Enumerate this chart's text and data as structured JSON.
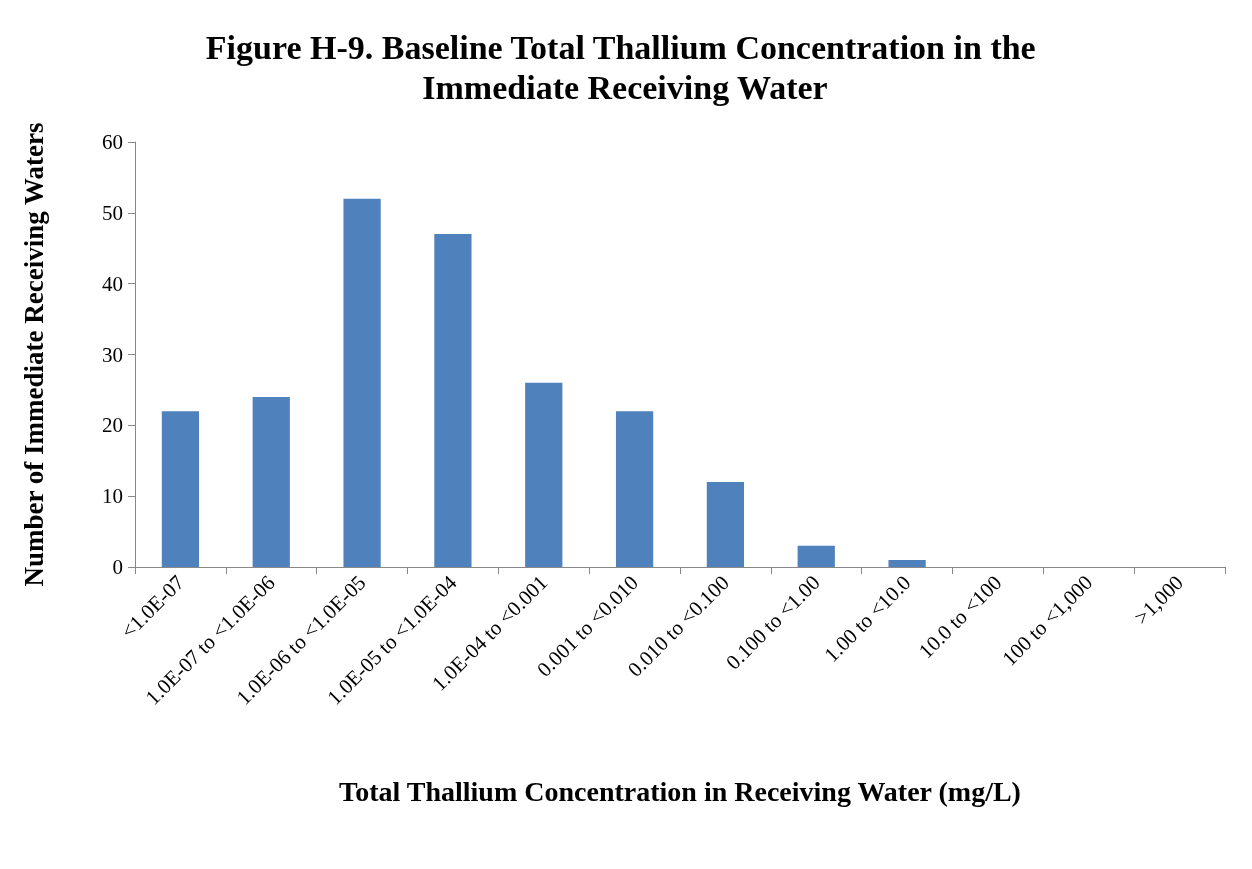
{
  "chart_data": {
    "type": "bar",
    "title": "Figure H-9. Baseline Total Thallium Concentration in the Immediate Receiving Water",
    "xlabel": "Total Thallium Concentration in Receiving Water (mg/L)",
    "ylabel": "Number of Immediate Receiving Waters",
    "categories": [
      "<1.0E-07",
      "1.0E-07 to <1.0E-06",
      "1.0E-06 to <1.0E-05",
      "1.0E-05 to <1.0E-04",
      "1.0E-04 to <0.001",
      "0.001 to <0.010",
      "0.010 to <0.100",
      "0.100 to <1.00",
      "1.00 to <10.0",
      "10.0 to <100",
      "100 to <1,000",
      ">1,000"
    ],
    "values": [
      22,
      24,
      52,
      47,
      26,
      22,
      12,
      3,
      1,
      0,
      0,
      0
    ],
    "color": "#4f81bd",
    "ylim": [
      0,
      60
    ],
    "yticks": [
      0,
      10,
      20,
      30,
      40,
      50,
      60
    ],
    "grid": false
  }
}
